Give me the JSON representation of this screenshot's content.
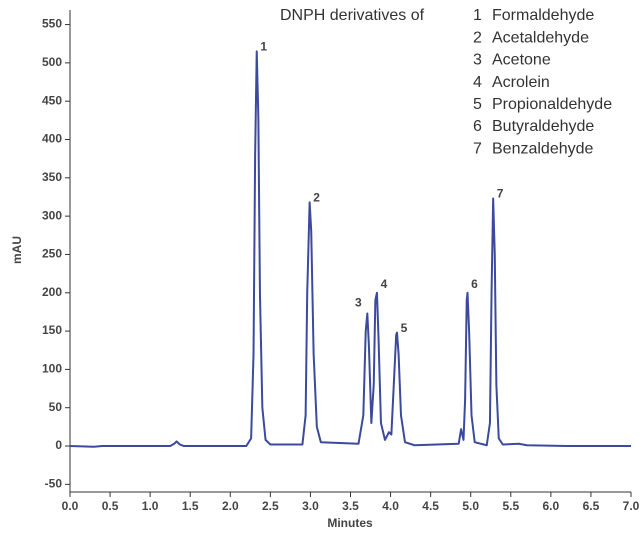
{
  "chart_data": {
    "type": "line",
    "y_label": "mAU",
    "x_label": "Minutes",
    "legend_title": "DNPH derivatives of",
    "legend_items": [
      {
        "number": "1",
        "name": "Formaldehyde"
      },
      {
        "number": "2",
        "name": "Acetaldehyde"
      },
      {
        "number": "3",
        "name": "Acetone"
      },
      {
        "number": "4",
        "name": "Acrolein"
      },
      {
        "number": "5",
        "name": "Propionaldehyde"
      },
      {
        "number": "6",
        "name": "Butyraldehyde"
      },
      {
        "number": "7",
        "name": "Benzaldehyde"
      }
    ],
    "annotations": [
      "1",
      "2",
      "3",
      "4",
      "5",
      "6",
      "7"
    ],
    "color": "#3b4a9c",
    "x": [
      0.0,
      0.3,
      0.4,
      1.25,
      1.3,
      1.33,
      1.37,
      1.42,
      2.2,
      2.26,
      2.29,
      2.31,
      2.33,
      2.35,
      2.37,
      2.4,
      2.44,
      2.5,
      2.9,
      2.94,
      2.96,
      2.99,
      3.01,
      3.04,
      3.08,
      3.13,
      3.6,
      3.66,
      3.69,
      3.71,
      3.73,
      3.76,
      3.79,
      3.81,
      3.83,
      3.85,
      3.88,
      3.93,
      3.98,
      4.01,
      4.04,
      4.07,
      4.08,
      4.1,
      4.13,
      4.18,
      4.3,
      4.85,
      4.88,
      4.91,
      4.93,
      4.95,
      4.96,
      4.98,
      5.01,
      5.05,
      5.2,
      5.24,
      5.26,
      5.28,
      5.3,
      5.32,
      5.35,
      5.4,
      5.6,
      5.7,
      6.2,
      7.0
    ],
    "values": [
      0,
      -1,
      0,
      0,
      3,
      6,
      2,
      0,
      0,
      10,
      120,
      380,
      515,
      430,
      200,
      50,
      8,
      2,
      2,
      40,
      200,
      318,
      280,
      120,
      25,
      5,
      3,
      40,
      150,
      173,
      130,
      30,
      80,
      190,
      200,
      140,
      30,
      8,
      18,
      15,
      80,
      145,
      148,
      120,
      40,
      5,
      1,
      3,
      22,
      8,
      60,
      190,
      200,
      150,
      40,
      5,
      1,
      30,
      200,
      323,
      250,
      80,
      10,
      2,
      3,
      1,
      0,
      0
    ],
    "xlim": [
      0,
      7
    ],
    "ylim": [
      -60,
      569
    ],
    "xticks": [
      {
        "value": 0,
        "label": "0.0"
      },
      0.5,
      {
        "value": 1,
        "label": "1.0"
      },
      1.5,
      {
        "value": 2,
        "label": "2.0"
      },
      2.5,
      {
        "value": 3,
        "label": "3.0"
      },
      3.5,
      {
        "value": 4,
        "label": "4.0"
      },
      4.5,
      {
        "value": 5,
        "label": "5.0"
      },
      5.5,
      {
        "value": 6,
        "label": "6.0"
      },
      6.5,
      {
        "value": 7,
        "label": "7.0"
      }
    ],
    "yticks": [
      -50,
      0,
      50,
      100,
      150,
      200,
      250,
      300,
      350,
      400,
      450,
      500,
      550
    ]
  }
}
